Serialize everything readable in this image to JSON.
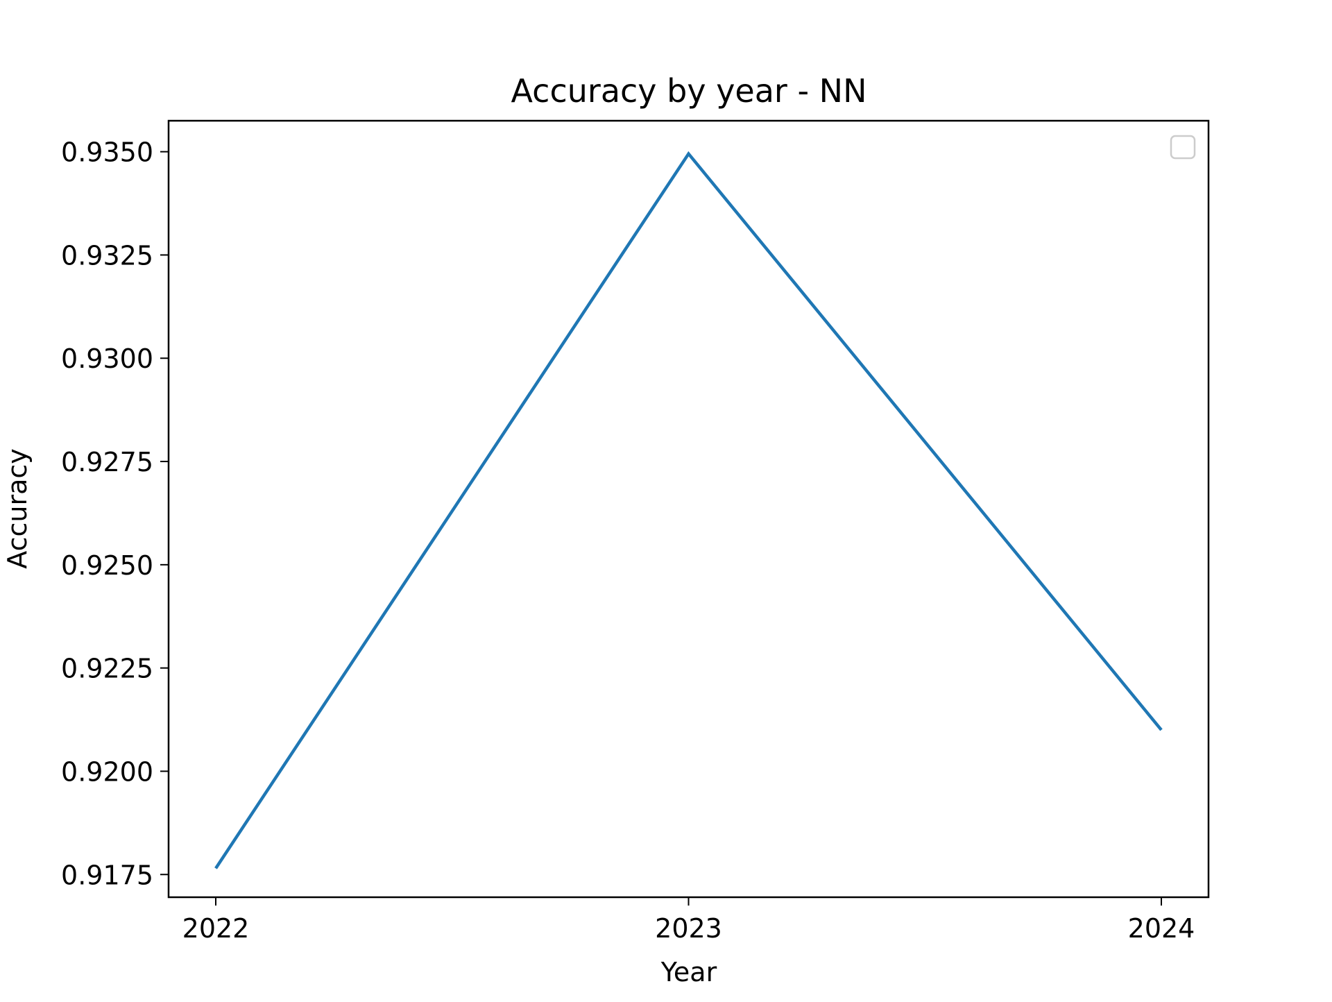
{
  "chart_data": {
    "type": "line",
    "title": "Accuracy by year - NN",
    "xlabel": "Year",
    "ylabel": "Accuracy",
    "x": [
      "2022",
      "2023",
      "2024"
    ],
    "series": [
      {
        "values": [
          0.91765,
          0.93495,
          0.921
        ],
        "color": "#1f77b4"
      }
    ],
    "ylim": [
      0.91695,
      0.93575
    ],
    "yticks": [
      0.9175,
      0.92,
      0.9225,
      0.925,
      0.9275,
      0.93,
      0.9325,
      0.935
    ],
    "ytick_labels": [
      "0.9175",
      "0.9200",
      "0.9225",
      "0.9250",
      "0.9275",
      "0.9300",
      "0.9325",
      "0.9350"
    ],
    "xtick_labels": [
      "2022",
      "2023",
      "2024"
    ],
    "grid": false,
    "legend": {
      "placement": "top-right",
      "entries": []
    }
  }
}
